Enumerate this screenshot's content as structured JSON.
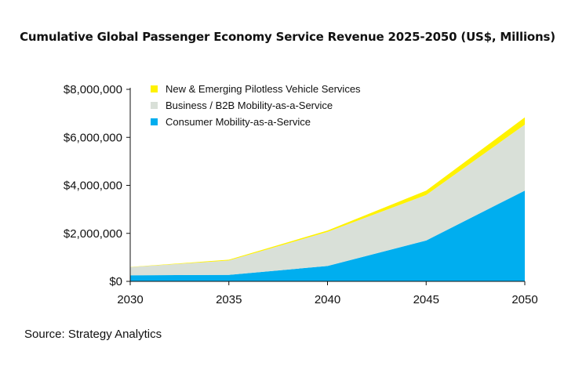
{
  "chart_data": {
    "type": "area",
    "stacked": true,
    "title": "Cumulative Global Passenger Economy Service Revenue 2025-2050 (US$, Millions)",
    "source": "Source: Strategy Analytics",
    "x": [
      2030,
      2035,
      2040,
      2045,
      2050
    ],
    "x_tick_labels": [
      "2030",
      "2035",
      "2040",
      "2045",
      "2050"
    ],
    "ylim": [
      0,
      8000000
    ],
    "y_ticks": [
      0,
      2000000,
      4000000,
      6000000,
      8000000
    ],
    "y_tick_labels": [
      "$0",
      "$2,000,000",
      "$4,000,000",
      "$6,000,000",
      "$8,000,000"
    ],
    "legend_position": "top-left",
    "series": [
      {
        "name": "Consumer Mobility-as-a-Service",
        "color": "#00aeef",
        "values": [
          250000,
          270000,
          640000,
          1700000,
          3780000
        ]
      },
      {
        "name": "Business / B2B Mobility-as-a-Service",
        "color": "#d9e0d8",
        "values": [
          340000,
          600000,
          1420000,
          1900000,
          2750000
        ]
      },
      {
        "name": "New & Emerging Pilotless Vehicle Services",
        "color": "#fff200",
        "values": [
          10000,
          30000,
          60000,
          180000,
          300000
        ]
      }
    ]
  }
}
